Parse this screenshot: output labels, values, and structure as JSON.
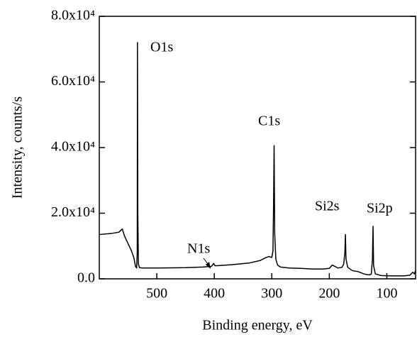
{
  "chart_data": {
    "type": "line",
    "xlabel": "Binding energy, eV",
    "ylabel": "Intensity, counts/s",
    "x": [
      600,
      580,
      566,
      560,
      556,
      552,
      548,
      544,
      540,
      537,
      535,
      534,
      533.6,
      533,
      532,
      530,
      525,
      500,
      450,
      420,
      405,
      401,
      399,
      395,
      370,
      340,
      320,
      310,
      305,
      300,
      298,
      297,
      296,
      295,
      293,
      290,
      285,
      270,
      250,
      230,
      210,
      200,
      195,
      185,
      178,
      175,
      173,
      172,
      171,
      168,
      160,
      150,
      140,
      135,
      130,
      127,
      125,
      124,
      123,
      120,
      110,
      90,
      70,
      60,
      55,
      52,
      50
    ],
    "values": [
      13500,
      13800,
      14200,
      15200,
      13000,
      11500,
      10000,
      8500,
      6500,
      3800,
      3300,
      8000,
      72000,
      20000,
      4500,
      3400,
      3300,
      3300,
      3400,
      3600,
      3800,
      4700,
      4000,
      4000,
      4300,
      4800,
      5600,
      6500,
      6800,
      6500,
      8500,
      22000,
      40600,
      14000,
      6000,
      4200,
      3600,
      3300,
      3200,
      3000,
      3000,
      3200,
      4200,
      3300,
      3500,
      4500,
      8000,
      13500,
      6000,
      3500,
      2500,
      2200,
      1500,
      1300,
      1200,
      1500,
      6000,
      16000,
      4000,
      1500,
      1000,
      900,
      900,
      1100,
      2000,
      1500,
      2600
    ],
    "color": "#000000",
    "xlim": [
      600,
      50
    ],
    "xticks": [
      500,
      400,
      300,
      200,
      100
    ],
    "ylim": [
      0,
      80000
    ],
    "yticks": [
      {
        "value": 0,
        "label": "0.0"
      },
      {
        "value": 20000,
        "label": "2.0x10⁴"
      },
      {
        "value": 40000,
        "label": "4.0x10⁴"
      },
      {
        "value": 60000,
        "label": "6.0x10⁴"
      },
      {
        "value": 80000,
        "label": "8.0x10⁴"
      }
    ],
    "annotations": [
      "O1s",
      "C1s",
      "Si2s",
      "Si2p",
      "N1s"
    ]
  }
}
